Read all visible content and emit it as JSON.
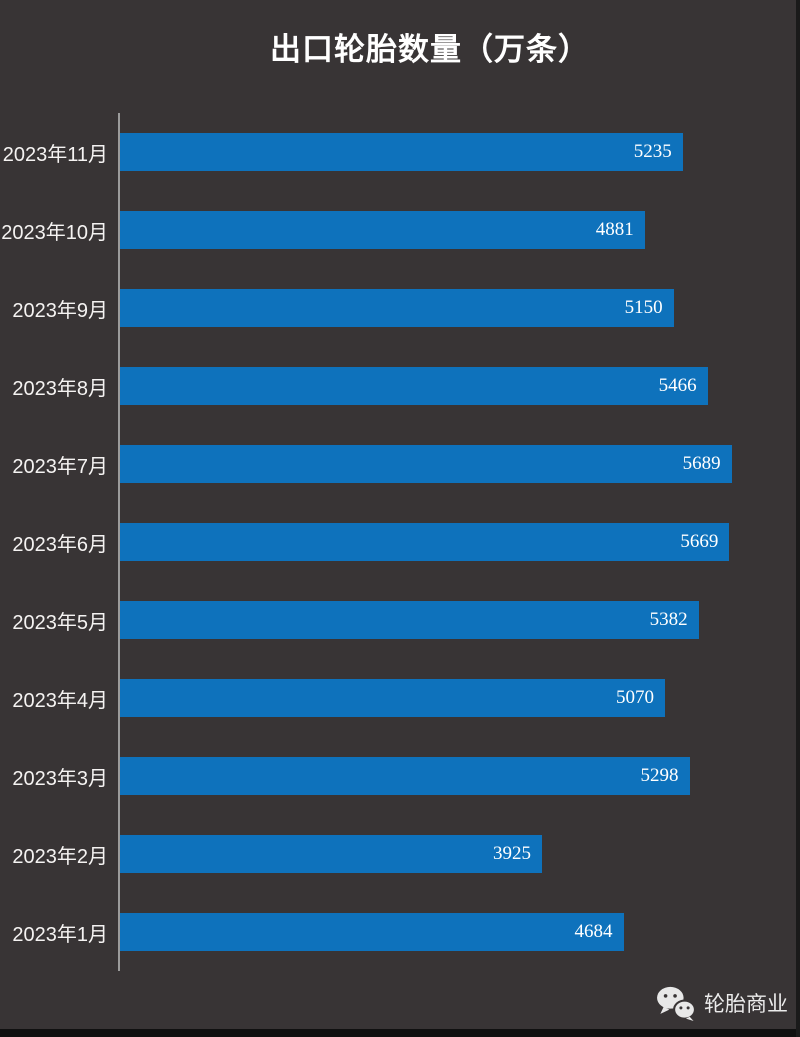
{
  "title": "出口轮胎数量（万条）",
  "watermark": {
    "label": "轮胎商业",
    "icon": "wechat-icon"
  },
  "colors": {
    "background": "#383435",
    "bar": "#0e72bc",
    "axis_line": "#9b9b9b",
    "category_text": "#f5f3f2",
    "value_text": "#ffffff"
  },
  "chart_data": {
    "type": "bar",
    "orientation": "horizontal",
    "title": "出口轮胎数量（万条）",
    "categories": [
      "2023年11月",
      "2023年10月",
      "2023年9月",
      "2023年8月",
      "2023年7月",
      "2023年6月",
      "2023年5月",
      "2023年4月",
      "2023年3月",
      "2023年2月",
      "2023年1月"
    ],
    "values": [
      5235,
      4881,
      5150,
      5466,
      5689,
      5669,
      5382,
      5070,
      5298,
      3925,
      4684
    ],
    "xlim": [
      0,
      6000
    ],
    "value_label_position": "inside-end",
    "grid": false,
    "legend": "none"
  }
}
